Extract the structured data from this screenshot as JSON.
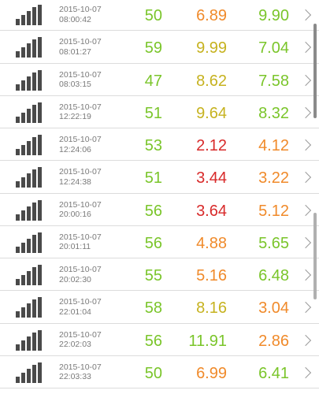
{
  "colors": {
    "green": "#7ac52a",
    "yellow": "#c6b21f",
    "orange": "#f08a2a",
    "red": "#d82a2a"
  },
  "rows": [
    {
      "date": "2015-10-07",
      "time": "08:00:42",
      "v1": "50",
      "v2": "6.89",
      "v3": "9.90",
      "c1": "green",
      "c2": "orange",
      "c3": "green"
    },
    {
      "date": "2015-10-07",
      "time": "08:01:27",
      "v1": "59",
      "v2": "9.99",
      "v3": "7.04",
      "c1": "green",
      "c2": "yellow",
      "c3": "green"
    },
    {
      "date": "2015-10-07",
      "time": "08:03:15",
      "v1": "47",
      "v2": "8.62",
      "v3": "7.58",
      "c1": "green",
      "c2": "yellow",
      "c3": "green"
    },
    {
      "date": "2015-10-07",
      "time": "12:22:19",
      "v1": "51",
      "v2": "9.64",
      "v3": "8.32",
      "c1": "green",
      "c2": "yellow",
      "c3": "green"
    },
    {
      "date": "2015-10-07",
      "time": "12:24:06",
      "v1": "53",
      "v2": "2.12",
      "v3": "4.12",
      "c1": "green",
      "c2": "red",
      "c3": "orange"
    },
    {
      "date": "2015-10-07",
      "time": "12:24:38",
      "v1": "51",
      "v2": "3.44",
      "v3": "3.22",
      "c1": "green",
      "c2": "red",
      "c3": "orange"
    },
    {
      "date": "2015-10-07",
      "time": "20:00:16",
      "v1": "56",
      "v2": "3.64",
      "v3": "5.12",
      "c1": "green",
      "c2": "red",
      "c3": "orange"
    },
    {
      "date": "2015-10-07",
      "time": "20:01:11",
      "v1": "56",
      "v2": "4.88",
      "v3": "5.65",
      "c1": "green",
      "c2": "orange",
      "c3": "green"
    },
    {
      "date": "2015-10-07",
      "time": "20:02:30",
      "v1": "55",
      "v2": "5.16",
      "v3": "6.48",
      "c1": "green",
      "c2": "orange",
      "c3": "green"
    },
    {
      "date": "2015-10-07",
      "time": "22:01:04",
      "v1": "58",
      "v2": "8.16",
      "v3": "3.04",
      "c1": "green",
      "c2": "yellow",
      "c3": "orange"
    },
    {
      "date": "2015-10-07",
      "time": "22:02:03",
      "v1": "56",
      "v2": "11.91",
      "v3": "2.86",
      "c1": "green",
      "c2": "green",
      "c3": "orange"
    },
    {
      "date": "2015-10-07",
      "time": "22:03:33",
      "v1": "50",
      "v2": "6.99",
      "v3": "6.41",
      "c1": "green",
      "c2": "orange",
      "c3": "green"
    }
  ],
  "icons": {
    "signal": "signal-strength-icon",
    "chevron": "chevron-right-icon"
  }
}
